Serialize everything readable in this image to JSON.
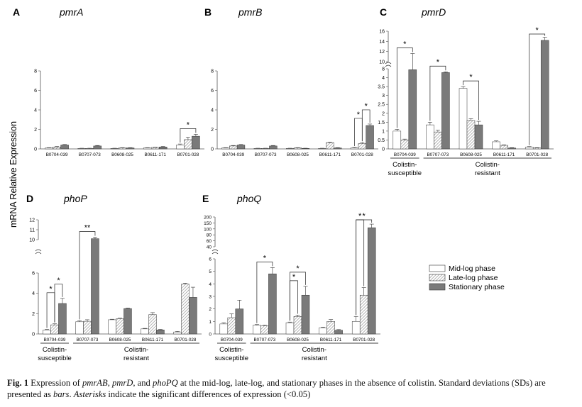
{
  "y_axis_label": "mRNA Relative Expression",
  "legend": {
    "items": [
      {
        "label": "Mid-log phase",
        "pattern": "white"
      },
      {
        "label": "Late-log phase",
        "pattern": "hatched"
      },
      {
        "label": "Stationary phase",
        "pattern": "dark"
      }
    ]
  },
  "group_labels": {
    "susceptible_line1": "Colistin-",
    "susceptible_line2": "susceptible",
    "resistant_line1": "Colistin-",
    "resistant_line2": "resistant"
  },
  "caption": {
    "fig_label": "Fig. 1",
    "part1": " Expression of ",
    "gene1": "pmrAB",
    "part2": ", ",
    "gene2": "pmrD",
    "part3": ", and ",
    "gene3": "phoPQ",
    "part4": " at the mid-log, late-log, and stationary phases in the absence of colistin. Standard deviations (SDs) are presented as ",
    "bars_word": "bars",
    "part5": ". ",
    "asterisks_word": "Asterisks",
    "part6": " indicate the significant differences of expression (<0.05)"
  },
  "colors": {
    "mid": "#ffffff",
    "late_hatch": "#8c8c8c",
    "stationary": "#7a7a7a",
    "outline": "#333333"
  },
  "chart_data": [
    {
      "panel": "A",
      "gene": "pmrA",
      "type": "bar",
      "categories": [
        "B0704-039",
        "B0707-073",
        "B0608-025",
        "B0611-171",
        "B0701-028"
      ],
      "ylim": [
        0,
        8
      ],
      "yticks": [
        "0",
        "2",
        "4",
        "6",
        "8"
      ],
      "series": [
        {
          "name": "Mid-log phase",
          "values": [
            0.1,
            0.05,
            0.05,
            0.1,
            0.4
          ],
          "errors": [
            0.03,
            0.02,
            0.02,
            0.03,
            0.1
          ]
        },
        {
          "name": "Late-log phase",
          "values": [
            0.2,
            0.05,
            0.1,
            0.15,
            0.95
          ],
          "errors": [
            0.05,
            0.02,
            0.03,
            0.04,
            0.25
          ]
        },
        {
          "name": "Stationary phase",
          "values": [
            0.4,
            0.3,
            0.1,
            0.2,
            1.3
          ],
          "errors": [
            0.05,
            0.05,
            0.03,
            0.05,
            0.2
          ]
        }
      ],
      "significance": [
        {
          "category": "B0701-028",
          "from": "Mid-log phase",
          "to": "Stationary phase",
          "label": "*"
        }
      ]
    },
    {
      "panel": "B",
      "gene": "pmrB",
      "type": "bar",
      "categories": [
        "B0704-039",
        "B0707-073",
        "B0608-025",
        "B0611-171",
        "B0701-028"
      ],
      "ylim": [
        0,
        8
      ],
      "yticks": [
        "0",
        "2",
        "4",
        "6",
        "8"
      ],
      "series": [
        {
          "name": "Mid-log phase",
          "values": [
            0.1,
            0.05,
            0.05,
            0.05,
            0.1
          ],
          "errors": [
            0.03,
            0.02,
            0.02,
            0.02,
            0.05
          ]
        },
        {
          "name": "Late-log phase",
          "values": [
            0.3,
            0.05,
            0.1,
            0.65,
            0.55
          ],
          "errors": [
            0.05,
            0.02,
            0.03,
            0.05,
            0.1
          ]
        },
        {
          "name": "Stationary phase",
          "values": [
            0.4,
            0.3,
            0.05,
            0.1,
            2.4
          ],
          "errors": [
            0.05,
            0.05,
            0.02,
            0.03,
            0.15
          ]
        }
      ],
      "significance": [
        {
          "category": "B0701-028",
          "from": "Mid-log phase",
          "to": "Late-log phase",
          "label": "*"
        },
        {
          "category": "B0701-028",
          "from": "Late-log phase",
          "to": "Stationary phase",
          "label": "*"
        }
      ]
    },
    {
      "panel": "C",
      "gene": "pmrD",
      "type": "bar",
      "categories": [
        "B0704-039",
        "B0707-073",
        "B0608-025",
        "B0611-171",
        "B0701-028"
      ],
      "yaxis_break": [
        8,
        10
      ],
      "yticks_lower": [
        "0",
        "0.5",
        "1",
        "1.5",
        "2",
        "2.5",
        "3",
        "3.5",
        "4",
        "8"
      ],
      "yticks_upper": [
        "10",
        "12",
        "14",
        "16"
      ],
      "series": [
        {
          "name": "Mid-log phase",
          "values": [
            1.0,
            1.35,
            3.4,
            0.4,
            0.1
          ],
          "errors": [
            0.1,
            0.15,
            0.1,
            0.05,
            0.03
          ]
        },
        {
          "name": "Late-log phase",
          "values": [
            0.5,
            0.95,
            1.6,
            0.2,
            0.05
          ],
          "errors": [
            0.05,
            0.1,
            0.1,
            0.03,
            0.02
          ]
        },
        {
          "name": "Stationary phase",
          "values": [
            7.6,
            6.3,
            1.35,
            0.05,
            14.2
          ],
          "errors": [
            4.0,
            0.35,
            0.2,
            0.02,
            0.6
          ]
        }
      ],
      "significance": [
        {
          "category": "B0704-039",
          "from": "Mid-log phase",
          "to": "Stationary phase",
          "label": "*"
        },
        {
          "category": "B0707-073",
          "from": "Mid-log phase",
          "to": "Stationary phase",
          "label": "*"
        },
        {
          "category": "B0608-025",
          "from": "Mid-log phase",
          "to": "Stationary phase",
          "label": "*"
        },
        {
          "category": "B0701-028",
          "from": "Mid-log phase",
          "to": "Stationary phase",
          "label": "*"
        }
      ]
    },
    {
      "panel": "D",
      "gene": "phoP",
      "type": "bar",
      "categories": [
        "B0704-039",
        "B0707-073",
        "B0608-025",
        "B0611-171",
        "B0701-028"
      ],
      "yaxis_break": [
        6,
        10
      ],
      "yticks_lower": [
        "0",
        "2",
        "4",
        "6"
      ],
      "yticks_upper": [
        "10",
        "11",
        "12"
      ],
      "series": [
        {
          "name": "Mid-log phase",
          "values": [
            0.4,
            1.2,
            1.4,
            0.5,
            0.2
          ],
          "errors": [
            0.05,
            0.1,
            0.05,
            0.05,
            0.05
          ]
        },
        {
          "name": "Late-log phase",
          "values": [
            0.9,
            1.25,
            1.5,
            1.9,
            4.9
          ],
          "errors": [
            0.1,
            0.15,
            0.05,
            0.2,
            0.1
          ]
        },
        {
          "name": "Stationary phase",
          "values": [
            3.0,
            10.1,
            2.5,
            0.4,
            3.6
          ],
          "errors": [
            0.5,
            0.15,
            0.05,
            0.05,
            1.0
          ]
        }
      ],
      "significance": [
        {
          "category": "B0704-039",
          "from": "Mid-log phase",
          "to": "Late-log phase",
          "label": "*"
        },
        {
          "category": "B0704-039",
          "from": "Late-log phase",
          "to": "Stationary phase",
          "label": "*"
        },
        {
          "category": "B0707-073",
          "from": "Mid-log phase",
          "to": "Stationary phase",
          "label": "**"
        }
      ]
    },
    {
      "panel": "E",
      "gene": "phoQ",
      "type": "bar",
      "categories": [
        "B0704-039",
        "B0707-073",
        "B0608-025",
        "B0611-171",
        "B0701-028"
      ],
      "yaxis_break": [
        6,
        40
      ],
      "yticks_lower": [
        "0",
        "1",
        "2",
        "3",
        "4",
        "5",
        "6"
      ],
      "yticks_upper": [
        "40",
        "60",
        "80",
        "100",
        "150",
        "200"
      ],
      "series": [
        {
          "name": "Mid-log phase",
          "values": [
            0.8,
            0.7,
            0.9,
            0.5,
            1.0
          ],
          "errors": [
            0.1,
            0.05,
            0.05,
            0.05,
            0.4
          ]
        },
        {
          "name": "Late-log phase",
          "values": [
            1.3,
            0.65,
            1.4,
            1.0,
            3.1
          ],
          "errors": [
            0.3,
            0.05,
            0.1,
            0.15,
            0.6
          ]
        },
        {
          "name": "Stationary phase",
          "values": [
            2.0,
            4.8,
            3.1,
            0.3,
            110
          ],
          "errors": [
            0.7,
            0.5,
            0.7,
            0.05,
            30
          ]
        }
      ],
      "significance": [
        {
          "category": "B0707-073",
          "from": "Mid-log phase",
          "to": "Stationary phase",
          "label": "*"
        },
        {
          "category": "B0608-025",
          "from": "Mid-log phase",
          "to": "Late-log phase",
          "label": "*"
        },
        {
          "category": "B0608-025",
          "from": "Mid-log phase",
          "to": "Stationary phase",
          "label": "*"
        },
        {
          "category": "B0701-028",
          "from": "Mid-log phase",
          "to": "Late-log phase",
          "label": "*"
        },
        {
          "category": "B0701-028",
          "from": "Mid-log phase",
          "to": "Stationary phase",
          "label": "*"
        }
      ]
    }
  ]
}
